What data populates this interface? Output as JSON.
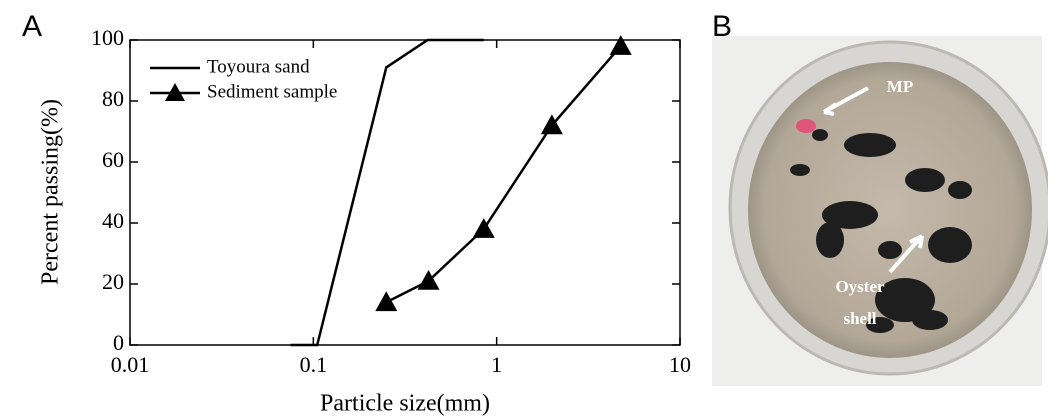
{
  "chart_data": {
    "type": "line",
    "xlabel": "Particle size(mm)",
    "ylabel": "Percent passing(%)",
    "xscale": "log",
    "xlim": [
      0.01,
      10
    ],
    "xticks": [
      0.01,
      0.1,
      1,
      10
    ],
    "ylim": [
      0,
      100
    ],
    "yticks": [
      0,
      20,
      40,
      60,
      80,
      100
    ],
    "legend": "upper left",
    "series": [
      {
        "name": "Toyoura sand",
        "color": "#000000",
        "marker": "none",
        "x": [
          0.075,
          0.105,
          0.25,
          0.42,
          0.85
        ],
        "values": [
          0,
          0,
          91,
          100,
          100
        ]
      },
      {
        "name": "Sediment sample",
        "color": "#000000",
        "marker": "triangle",
        "x": [
          0.25,
          0.425,
          0.85,
          2,
          4.75
        ],
        "values": [
          14,
          21,
          38,
          72,
          98
        ]
      }
    ]
  },
  "panel_labels": [
    "A",
    "B"
  ],
  "photo": {
    "annotations": [
      "MP",
      "Oyster",
      "shell"
    ]
  }
}
